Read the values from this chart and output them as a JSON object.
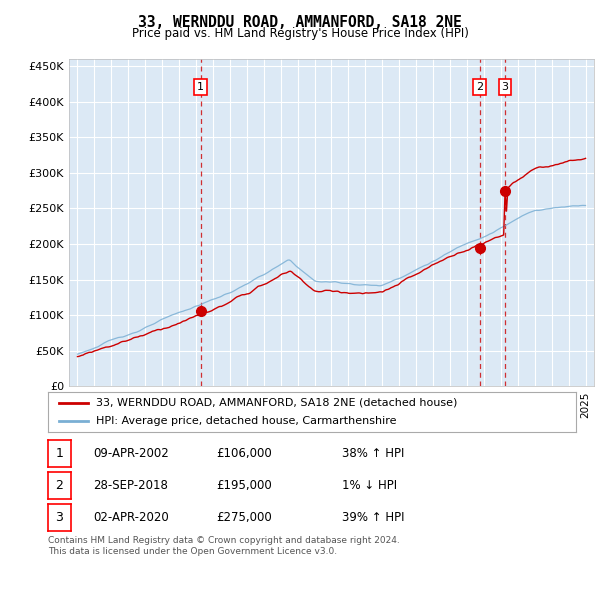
{
  "title": "33, WERNDDU ROAD, AMMANFORD, SA18 2NE",
  "subtitle": "Price paid vs. HM Land Registry's House Price Index (HPI)",
  "bg_color": "#dce9f5",
  "sale_color": "#cc0000",
  "hpi_color": "#7aafd4",
  "vline_color": "#cc0000",
  "ylim": [
    0,
    460000
  ],
  "yticks": [
    0,
    50000,
    100000,
    150000,
    200000,
    250000,
    300000,
    350000,
    400000,
    450000
  ],
  "ytick_labels": [
    "£0",
    "£50K",
    "£100K",
    "£150K",
    "£200K",
    "£250K",
    "£300K",
    "£350K",
    "£400K",
    "£450K"
  ],
  "sales": [
    {
      "date_num": 2002.27,
      "price": 106000,
      "label": "1"
    },
    {
      "date_num": 2018.74,
      "price": 195000,
      "label": "2"
    },
    {
      "date_num": 2020.25,
      "price": 275000,
      "label": "3"
    }
  ],
  "legend_sale_label": "33, WERNDDU ROAD, AMMANFORD, SA18 2NE (detached house)",
  "legend_hpi_label": "HPI: Average price, detached house, Carmarthenshire",
  "table_rows": [
    {
      "num": "1",
      "date": "09-APR-2002",
      "price": "£106,000",
      "change": "38% ↑ HPI"
    },
    {
      "num": "2",
      "date": "28-SEP-2018",
      "price": "£195,000",
      "change": "1% ↓ HPI"
    },
    {
      "num": "3",
      "date": "02-APR-2020",
      "price": "£275,000",
      "change": "39% ↑ HPI"
    }
  ],
  "footnote": "Contains HM Land Registry data © Crown copyright and database right 2024.\nThis data is licensed under the Open Government Licence v3.0."
}
